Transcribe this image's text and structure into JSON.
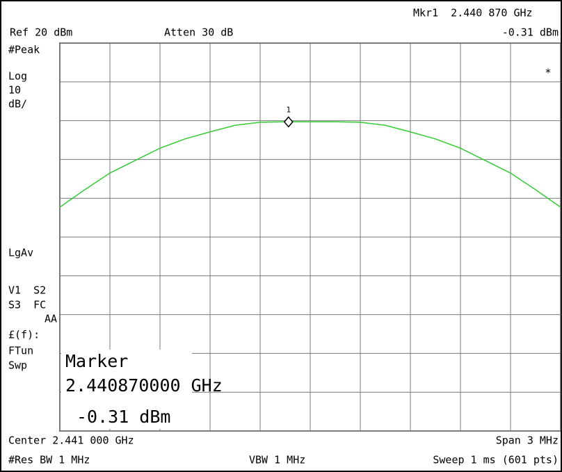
{
  "chart_data": {
    "type": "line",
    "color": "#33cc33",
    "x": [
      2.4395,
      2.43965,
      2.4398,
      2.43995,
      2.4401,
      2.44025,
      2.4404,
      2.44055,
      2.4407,
      2.44085,
      2.441,
      2.44115,
      2.4413,
      2.44145,
      2.4416,
      2.44175,
      2.4419,
      2.44205,
      2.4422,
      2.44235,
      2.4425
    ],
    "values": [
      -22.3,
      -17.8,
      -13.5,
      -10.3,
      -7.1,
      -4.7,
      -2.9,
      -1.2,
      -0.4,
      -0.3,
      -0.3,
      -0.3,
      -0.4,
      -1.2,
      -2.9,
      -4.7,
      -7.1,
      -10.3,
      -13.5,
      -17.8,
      -22.3
    ],
    "xlim": [
      2.4395,
      2.4425
    ],
    "ylim": [
      -80,
      20
    ],
    "xticks": [
      2.4395,
      2.4398,
      2.4401,
      2.4404,
      2.4407,
      2.441,
      2.4413,
      2.4416,
      2.4419,
      2.4422,
      2.4425
    ],
    "yticks": [
      -80,
      -70,
      -60,
      -50,
      -40,
      -30,
      -20,
      -10,
      0,
      10,
      20
    ],
    "grid": true,
    "marker": {
      "label": "1",
      "x": 2.44087,
      "value": -0.31
    },
    "annotations": {
      "mkr_freq": "Mkr1  2.440 870 GHz",
      "mkr_amp": "-0.31 dBm",
      "ref": "Ref 20 dBm",
      "atten": "Atten 30 dB",
      "detector": "#Peak",
      "scale_type": "Log",
      "scale_value": "10",
      "scale_unit": "dB/",
      "star": "*",
      "avg": "LgAv",
      "flags1": "V1  S2",
      "flags2": "S3  FC",
      "flags3": "AA",
      "ff": "£(f):",
      "ftun": "FTun",
      "swp": "Swp",
      "box_title": "Marker",
      "box_freq": "2.440870000 GHz",
      "box_amp": "-0.31 dBm",
      "center": "Center 2.441 000 GHz",
      "span": "Span 3 MHz",
      "rbw": "#Res BW 1 MHz",
      "vbw": "VBW 1 MHz",
      "sweep": "Sweep 1 ms (601 pts)"
    }
  }
}
